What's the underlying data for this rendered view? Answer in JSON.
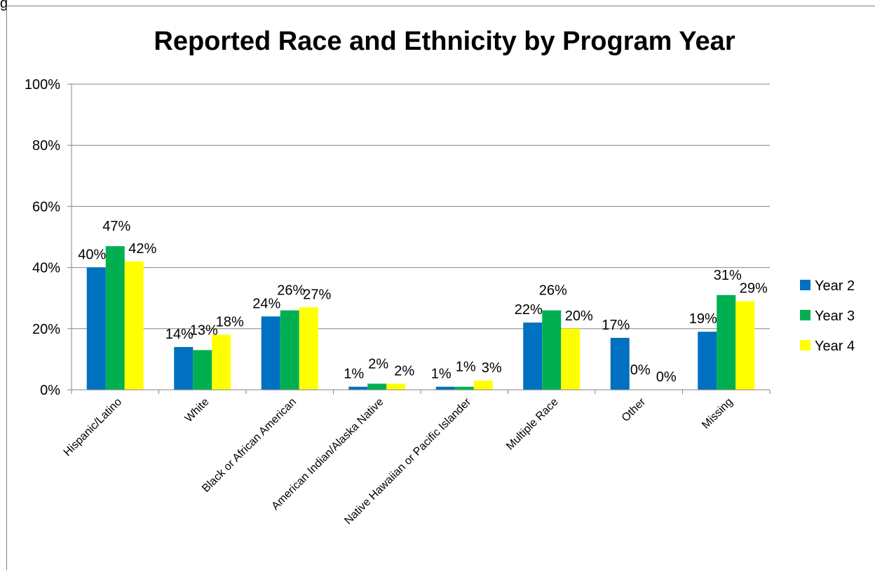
{
  "corner_label": "g",
  "chart_data": {
    "type": "bar",
    "title": "Reported Race and Ethnicity by Program Year",
    "categories": [
      "Hispanic/Latino",
      "White",
      "Black or African American",
      "American Indian/Alaska Native",
      "Native Hawaiian or Pacific Islander",
      "Multiple Race",
      "Other",
      "Missing"
    ],
    "series": [
      {
        "name": "Year 2",
        "color": "#0070C0",
        "values": [
          40,
          14,
          24,
          1,
          1,
          22,
          17,
          19
        ],
        "labels": [
          "40%",
          "14%",
          "24%",
          "1%",
          "1%",
          "22%",
          "17%",
          "19%"
        ]
      },
      {
        "name": "Year 3",
        "color": "#00B050",
        "values": [
          47,
          13,
          26,
          2,
          1,
          26,
          0,
          31
        ],
        "labels": [
          "47%",
          "13%",
          "26%",
          "2%",
          "1%",
          "26%",
          "0%",
          "31%"
        ]
      },
      {
        "name": "Year 4",
        "color": "#FFFF00",
        "values": [
          42,
          18,
          27,
          2,
          3,
          20,
          0,
          29
        ],
        "labels": [
          "42%",
          "18%",
          "27%",
          "2%",
          "3%",
          "20%",
          "0%",
          "29%"
        ]
      }
    ],
    "ylim": [
      0,
      100
    ],
    "yticks": [
      "0%",
      "20%",
      "40%",
      "60%",
      "80%",
      "100%"
    ],
    "grid": true,
    "legend_position": "right"
  }
}
